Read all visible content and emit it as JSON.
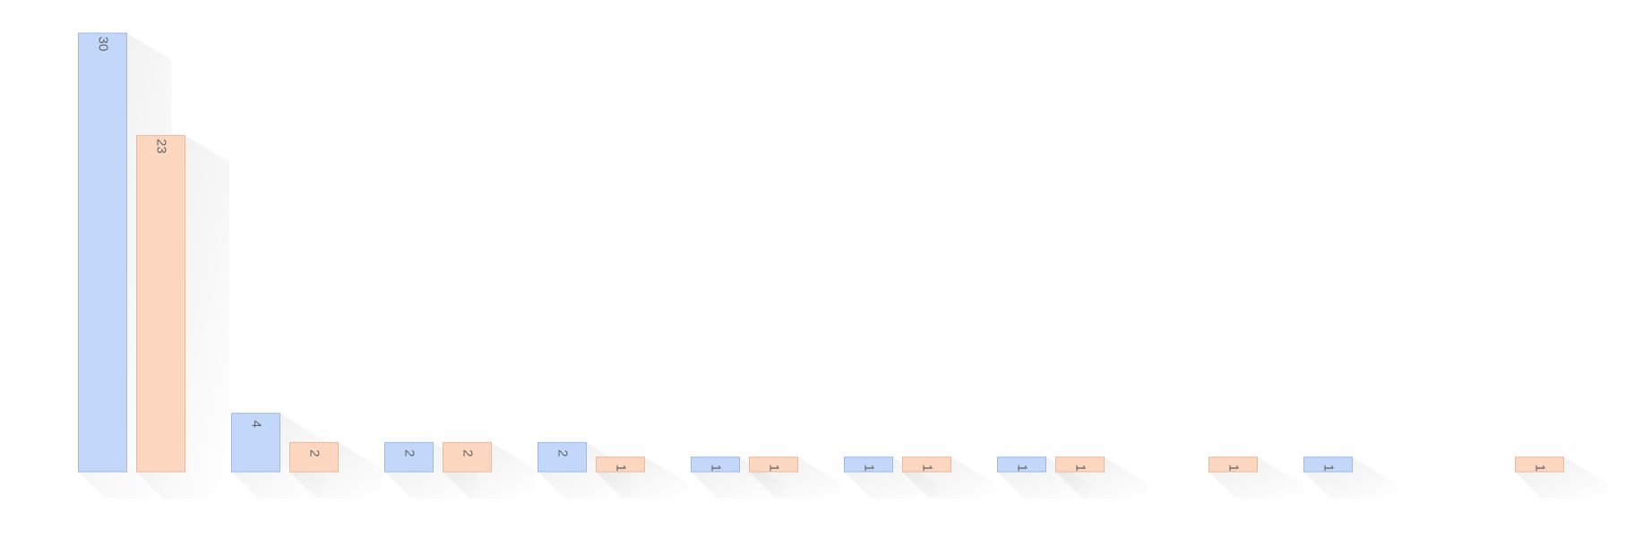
{
  "chart_data": {
    "type": "bar",
    "categories": [
      null,
      null,
      null,
      null,
      null,
      null,
      null,
      null,
      null,
      null
    ],
    "series": [
      {
        "name": null,
        "color": "#c2d7fa",
        "values": [
          30,
          4,
          2,
          2,
          1,
          1,
          1,
          null,
          1,
          null
        ]
      },
      {
        "name": null,
        "color": "#fdd6c0",
        "values": [
          23,
          2,
          2,
          1,
          1,
          1,
          1,
          1,
          null,
          1
        ]
      }
    ],
    "ylim": [
      0,
      30
    ]
  }
}
